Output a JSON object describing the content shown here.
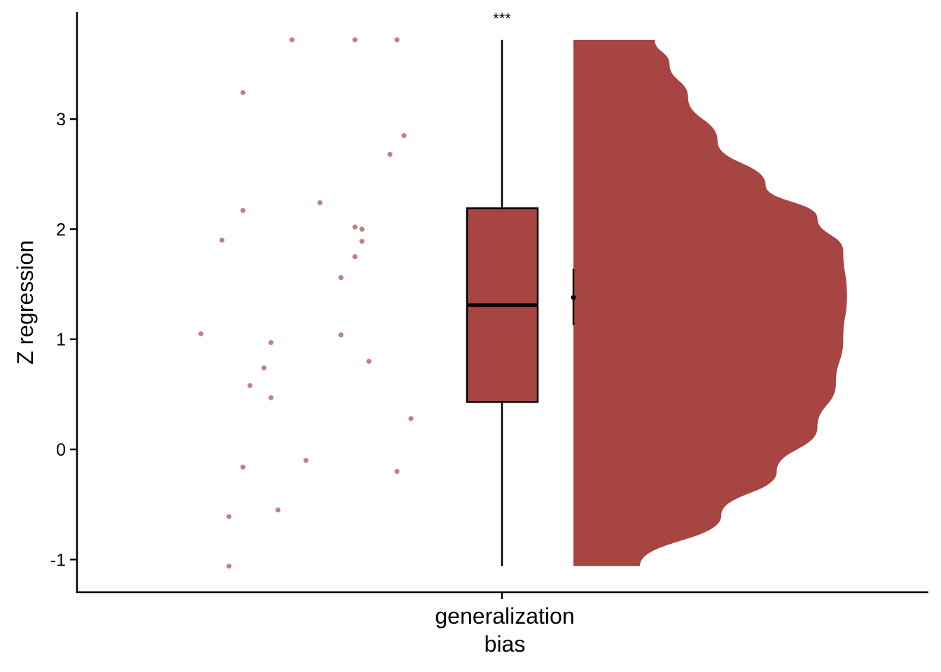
{
  "chart_data": {
    "type": "raincloud",
    "category": "generalization bias",
    "category_lines": [
      "generalization",
      "bias"
    ],
    "ylabel": "Z regression",
    "ylim": [
      -1.3,
      3.95
    ],
    "yticks": [
      -1,
      0,
      1,
      2,
      3
    ],
    "ytick_labels": [
      "-1",
      "0",
      "1",
      "2",
      "3"
    ],
    "significance": "***",
    "color": "#a64542",
    "point_color": "#c08480",
    "points": [
      {
        "jitter": -0.3,
        "y": 3.72
      },
      {
        "jitter": -0.21,
        "y": 3.72
      },
      {
        "jitter": -0.15,
        "y": 3.72
      },
      {
        "jitter": -0.37,
        "y": 3.24
      },
      {
        "jitter": -0.14,
        "y": 2.85
      },
      {
        "jitter": -0.16,
        "y": 2.68
      },
      {
        "jitter": -0.26,
        "y": 2.24
      },
      {
        "jitter": -0.37,
        "y": 2.17
      },
      {
        "jitter": -0.21,
        "y": 2.02
      },
      {
        "jitter": -0.2,
        "y": 2.0
      },
      {
        "jitter": -0.4,
        "y": 1.9
      },
      {
        "jitter": -0.2,
        "y": 1.89
      },
      {
        "jitter": -0.21,
        "y": 1.75
      },
      {
        "jitter": -0.23,
        "y": 1.56
      },
      {
        "jitter": -0.43,
        "y": 1.05
      },
      {
        "jitter": -0.23,
        "y": 1.04
      },
      {
        "jitter": -0.33,
        "y": 0.97
      },
      {
        "jitter": -0.19,
        "y": 0.8
      },
      {
        "jitter": -0.34,
        "y": 0.74
      },
      {
        "jitter": -0.36,
        "y": 0.58
      },
      {
        "jitter": -0.33,
        "y": 0.47
      },
      {
        "jitter": -0.13,
        "y": 0.28
      },
      {
        "jitter": -0.28,
        "y": -0.1
      },
      {
        "jitter": -0.37,
        "y": -0.16
      },
      {
        "jitter": -0.15,
        "y": -0.2
      },
      {
        "jitter": -0.32,
        "y": -0.55
      },
      {
        "jitter": -0.39,
        "y": -0.61
      },
      {
        "jitter": -0.39,
        "y": -1.06
      }
    ],
    "boxplot": {
      "min": -1.06,
      "q1": 0.43,
      "median": 1.31,
      "q3": 2.19,
      "max": 3.72
    },
    "mean": 1.38,
    "mean_ci": [
      1.13,
      1.64
    ],
    "density": [
      {
        "y": -1.06,
        "width": 0.18
      },
      {
        "y": -0.6,
        "width": 0.4
      },
      {
        "y": -0.2,
        "width": 0.55
      },
      {
        "y": 0.2,
        "width": 0.66
      },
      {
        "y": 0.6,
        "width": 0.71
      },
      {
        "y": 1.0,
        "width": 0.73
      },
      {
        "y": 1.4,
        "width": 0.74
      },
      {
        "y": 1.8,
        "width": 0.73
      },
      {
        "y": 2.1,
        "width": 0.66
      },
      {
        "y": 2.4,
        "width": 0.52
      },
      {
        "y": 2.8,
        "width": 0.39
      },
      {
        "y": 3.2,
        "width": 0.31
      },
      {
        "y": 3.5,
        "width": 0.26
      },
      {
        "y": 3.72,
        "width": 0.22
      }
    ]
  }
}
